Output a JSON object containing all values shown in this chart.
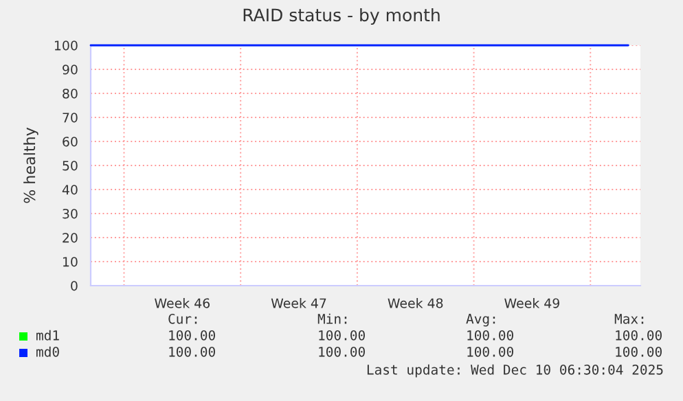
{
  "chart_data": {
    "type": "line",
    "title": "RAID status - by month",
    "ylabel": "% healthy",
    "x": [
      "2025-11-08",
      "2025-12-10T06:30"
    ],
    "series": [
      {
        "name": "md1",
        "color": "#00ff00",
        "values": [
          null,
          null
        ]
      },
      {
        "name": "md0",
        "color": "#0022ff",
        "values": [
          100,
          100
        ]
      }
    ],
    "xlim": [
      "2025-11-08",
      "2025-12-11"
    ],
    "xticks": [
      {
        "value": "2025-11-10",
        "label": null
      },
      {
        "value": "2025-11-13T12:00",
        "label": "Week 46"
      },
      {
        "value": "2025-11-17",
        "label": null
      },
      {
        "value": "2025-11-20T12:00",
        "label": "Week 47"
      },
      {
        "value": "2025-11-24",
        "label": null
      },
      {
        "value": "2025-11-27T12:00",
        "label": "Week 48"
      },
      {
        "value": "2025-12-01",
        "label": null
      },
      {
        "value": "2025-12-04T12:00",
        "label": "Week 49"
      },
      {
        "value": "2025-12-08",
        "label": null
      }
    ],
    "ylim": [
      0,
      100
    ],
    "yticks": [
      0,
      10,
      20,
      30,
      40,
      50,
      60,
      70,
      80,
      90,
      100
    ],
    "grid": true,
    "legend": "bottom",
    "annotations": [
      "Cur:",
      "Min:",
      "Avg:",
      "Max:",
      "100.00",
      "100.00",
      "100.00",
      "100.00",
      "100.00",
      "100.00",
      "100.00",
      "100.00",
      "Last update: Wed Dec 10 06:30:04 2025"
    ]
  }
}
